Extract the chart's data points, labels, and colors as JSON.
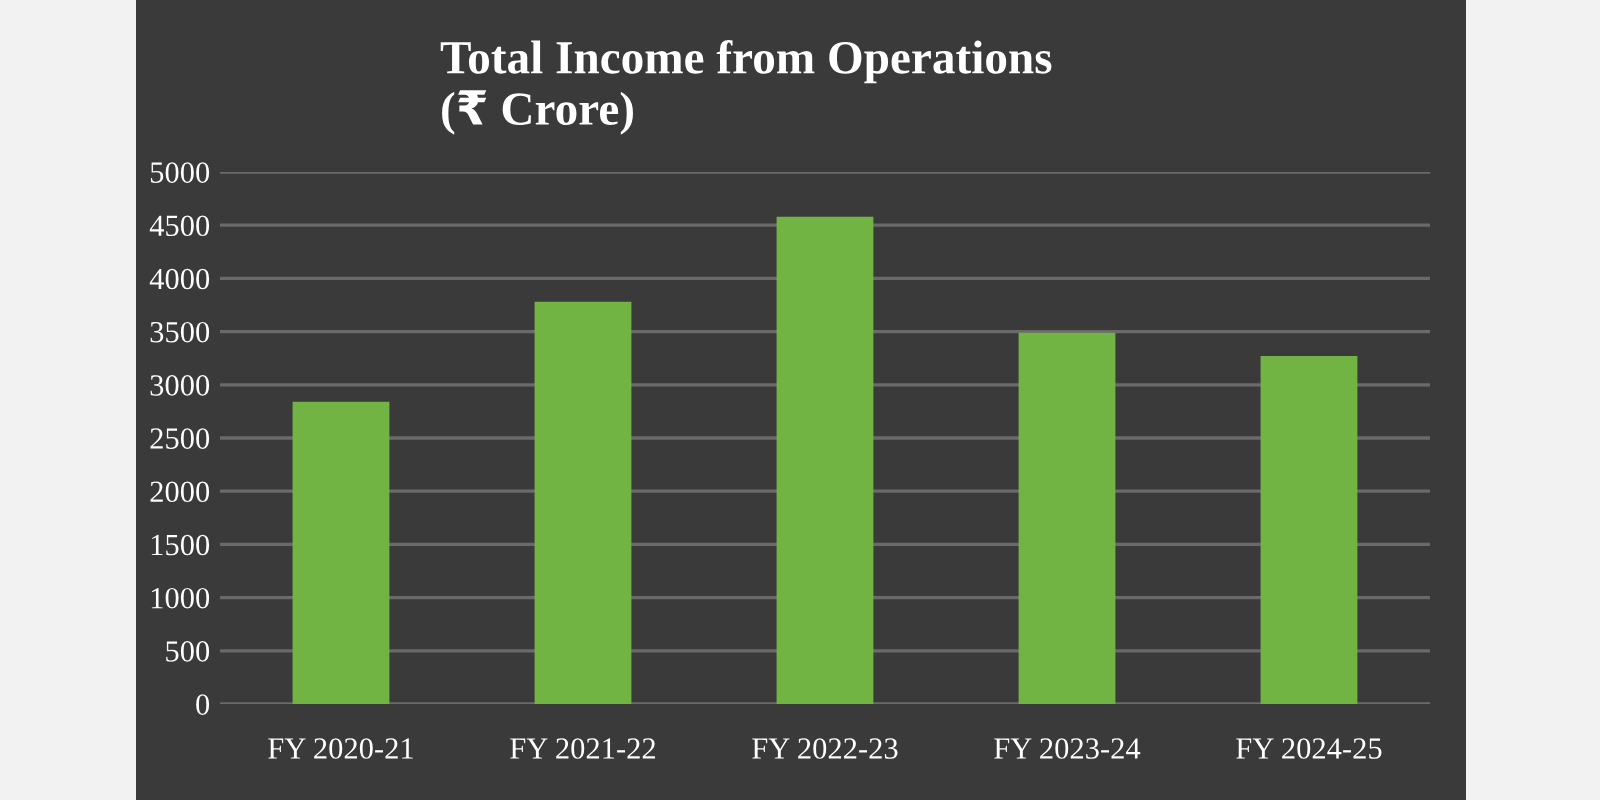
{
  "chart_data": {
    "type": "bar",
    "title": "Total Income from Operations\n(₹ Crore)",
    "categories": [
      "FY 2020-21",
      "FY 2021-22",
      "FY 2022-23",
      "FY 2023-24",
      "FY 2024-25"
    ],
    "values": [
      2840,
      3780,
      4580,
      3490,
      3270
    ],
    "color": "#72b443",
    "ylim": [
      0,
      5000
    ],
    "yticks": [
      0,
      500,
      1000,
      1500,
      2000,
      2500,
      3000,
      3500,
      4000,
      4500,
      5000
    ],
    "grid": "y"
  }
}
